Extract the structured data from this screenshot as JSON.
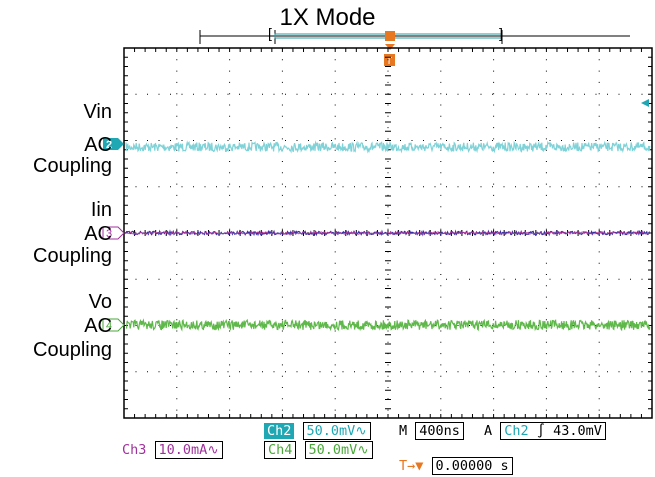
{
  "title": "1X Mode",
  "colors": {
    "ch2": "#7fd3d8",
    "ch3_trace": "#3a2fa0",
    "ch3_label": "#a0329c",
    "ch4": "#5fb84a",
    "trigger": "#e87722",
    "grid": "#000000"
  },
  "channels": [
    {
      "id": "2",
      "label_lines": [
        "Vin",
        "AC",
        "Coupling"
      ]
    },
    {
      "id": "3",
      "label_lines": [
        "Iin",
        "AC",
        "Coupling"
      ]
    },
    {
      "id": "4",
      "label_lines": [
        "Vo",
        "AC",
        "Coupling"
      ]
    }
  ],
  "trigger_marker": "T",
  "readouts": {
    "ch2_name": "Ch2",
    "ch2_scale": "50.0mV",
    "ch3_name": "Ch3",
    "ch3_scale": "10.0mA",
    "ch4_name": "Ch4",
    "ch4_scale": "50.0mV",
    "coupling_symbol": "∿",
    "timebase_prefix": "M",
    "timebase": "400ns",
    "acq_prefix": "A",
    "trig_source": "Ch2",
    "trig_slope": "∫",
    "trig_level": "43.0mV",
    "trig_pos_symbol": "T→▼",
    "trig_pos": "0.00000 s"
  }
}
